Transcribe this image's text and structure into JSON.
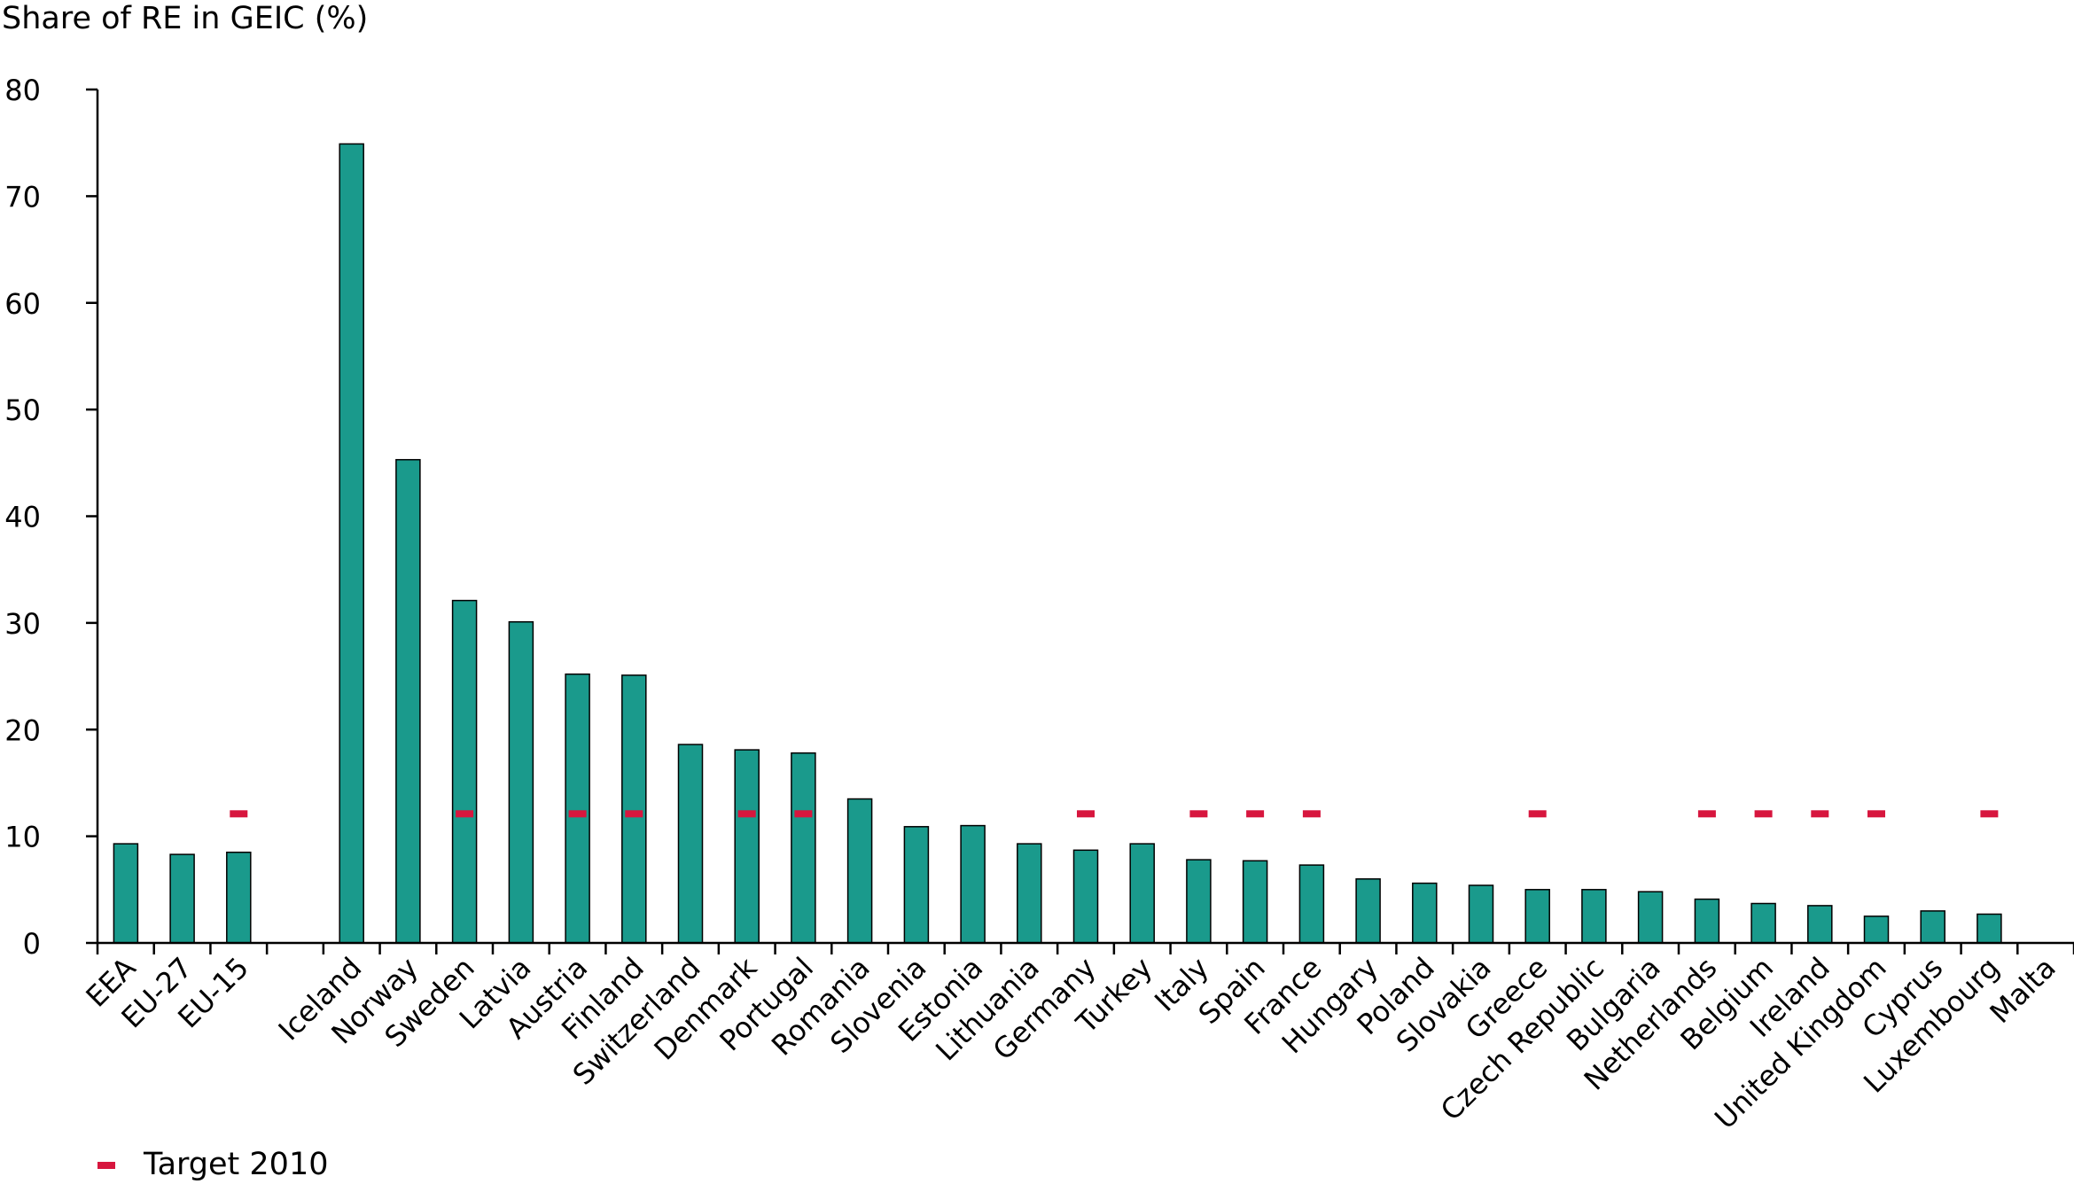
{
  "chart_data": {
    "type": "bar",
    "ylabel": "Share of RE in GEIC (%)",
    "xlabel": "",
    "ylim": [
      0,
      80
    ],
    "yticks": [
      0,
      10,
      20,
      30,
      40,
      50,
      60,
      70,
      80
    ],
    "grid": false,
    "legend_position": "bottom-left",
    "categories": [
      "EEA",
      "EU-27",
      "EU-15",
      "",
      "Iceland",
      "Norway",
      "Sweden",
      "Latvia",
      "Austria",
      "Finland",
      "Switzerland",
      "Denmark",
      "Portugal",
      "Romania",
      "Slovenia",
      "Estonia",
      "Lithuania",
      "Germany",
      "Turkey",
      "Italy",
      "Spain",
      "France",
      "Hungary",
      "Poland",
      "Slovakia",
      "Greece",
      "Czech Republic",
      "Bulgaria",
      "Netherlands",
      "Belgium",
      "Ireland",
      "United Kingdom",
      "Cyprus",
      "Luxembourg",
      "Malta"
    ],
    "series": [
      {
        "values": [
          9.3,
          8.3,
          8.5,
          null,
          74.9,
          45.3,
          32.1,
          30.1,
          25.2,
          25.1,
          18.6,
          18.1,
          17.8,
          13.5,
          10.9,
          11.0,
          9.3,
          8.7,
          9.3,
          7.8,
          7.7,
          7.3,
          6.0,
          5.6,
          5.4,
          5.0,
          5.0,
          4.8,
          4.1,
          3.7,
          3.5,
          2.5,
          3.0,
          2.7,
          0
        ]
      },
      {
        "name": "Target 2010",
        "values": [
          null,
          null,
          12.1,
          null,
          null,
          null,
          12.1,
          null,
          12.1,
          12.1,
          null,
          12.1,
          12.1,
          null,
          null,
          null,
          null,
          12.1,
          null,
          12.1,
          12.1,
          12.1,
          null,
          null,
          null,
          12.1,
          null,
          null,
          12.1,
          12.1,
          12.1,
          12.1,
          null,
          12.1,
          null
        ]
      }
    ],
    "colors": {
      "bar": "#1a9a8c",
      "bar_edge": "#000000",
      "target": "#d7163e"
    }
  }
}
